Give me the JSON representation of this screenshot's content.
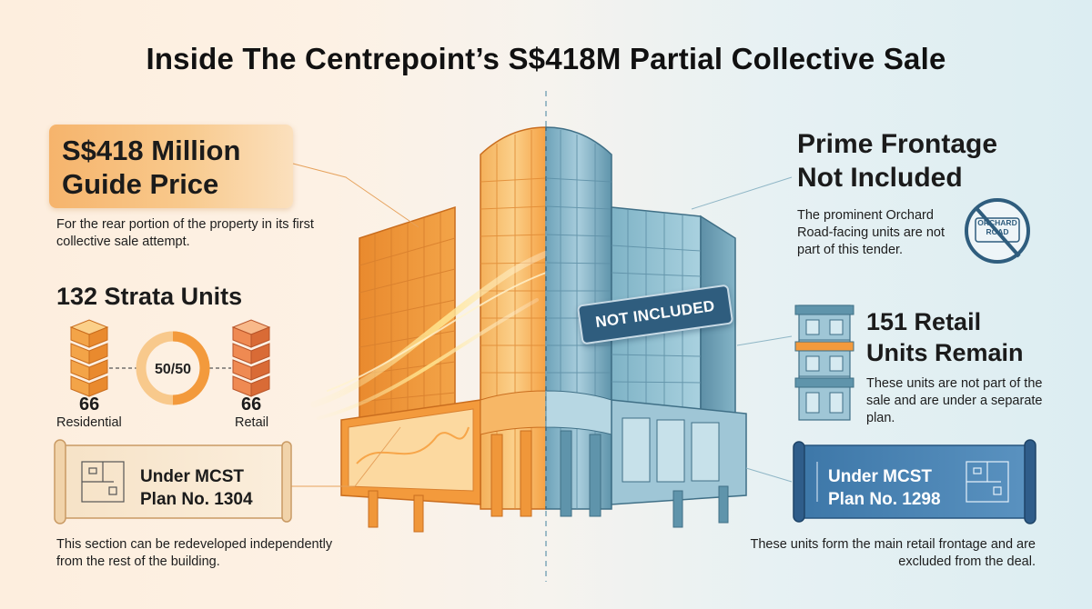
{
  "title": "Inside The Centrepoint’s S$418M Partial Collective Sale",
  "left": {
    "price_line1": "S$418 Million",
    "price_line2": "Guide Price",
    "price_desc": "For the rear portion of the property in its first collective sale attempt.",
    "strata_title": "132 Strata Units",
    "residential_count": "66",
    "residential_label": "Residential",
    "retail_count": "66",
    "retail_label": "Retail",
    "ratio": "50/50",
    "mcst_line1": "Under MCST",
    "mcst_line2": "Plan No. 1304",
    "bottom_text": "This section can be redeveloped independently from the rest of the building."
  },
  "right": {
    "frontage_line1": "Prime Frontage",
    "frontage_line2": "Not Included",
    "frontage_desc": "The prominent Orchard Road-facing units are not part of this tender.",
    "road_sign": "ORCHARD ROAD",
    "retail_line1": "151 Retail",
    "retail_line2": "Units Remain",
    "retail_desc": "These units are not part of the sale and are under a separate plan.",
    "mcst_line1": "Under MCST",
    "mcst_line2": "Plan No. 1298",
    "bottom_text": "These units form the main retail frontage and are excluded from the deal."
  },
  "building": {
    "banner": "NOT INCLUDED"
  },
  "colors": {
    "orange_accent": "#f39a3c",
    "blue_accent": "#2f5d7e",
    "warm_bg": "#fdeede",
    "cool_bg": "#dcedf2"
  }
}
